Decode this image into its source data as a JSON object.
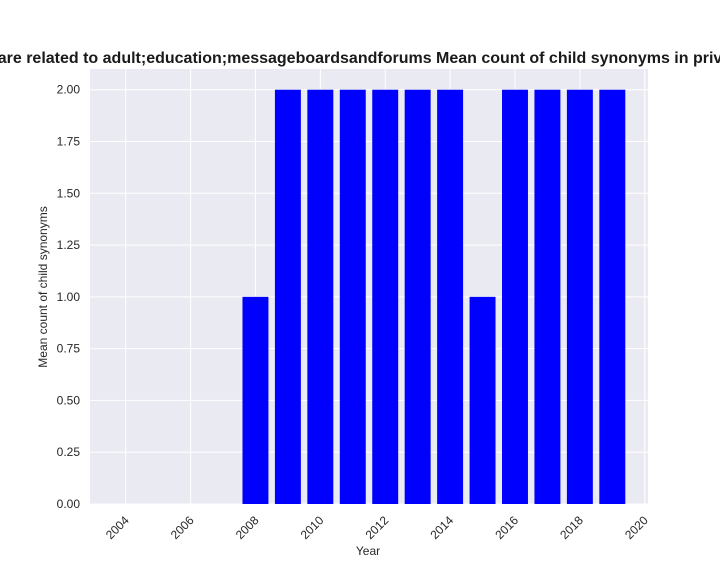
{
  "chart_data": {
    "type": "bar",
    "title": "are related to adult;education;messageboardsandforums Mean count of child synonyms in priv",
    "xlabel": "Year",
    "ylabel": "Mean count of child synonyms",
    "x": [
      2008,
      2009,
      2010,
      2011,
      2012,
      2013,
      2014,
      2015,
      2016,
      2017,
      2018,
      2019
    ],
    "values": [
      1.0,
      2.0,
      2.0,
      2.0,
      2.0,
      2.0,
      2.0,
      1.0,
      2.0,
      2.0,
      2.0,
      2.0
    ],
    "xlim": [
      2002.9,
      2020.1
    ],
    "ylim": [
      0,
      2.1
    ],
    "x_ticks": [
      "2004",
      "2006",
      "2008",
      "2010",
      "2012",
      "2014",
      "2016",
      "2018",
      "2020"
    ],
    "y_ticks": [
      "0.00",
      "0.25",
      "0.50",
      "0.75",
      "1.00",
      "1.25",
      "1.50",
      "1.75",
      "2.00"
    ],
    "grid": true,
    "bar_color": "#0000ff",
    "background_color": "#eaeaf2",
    "grid_color": "#ffffff"
  }
}
